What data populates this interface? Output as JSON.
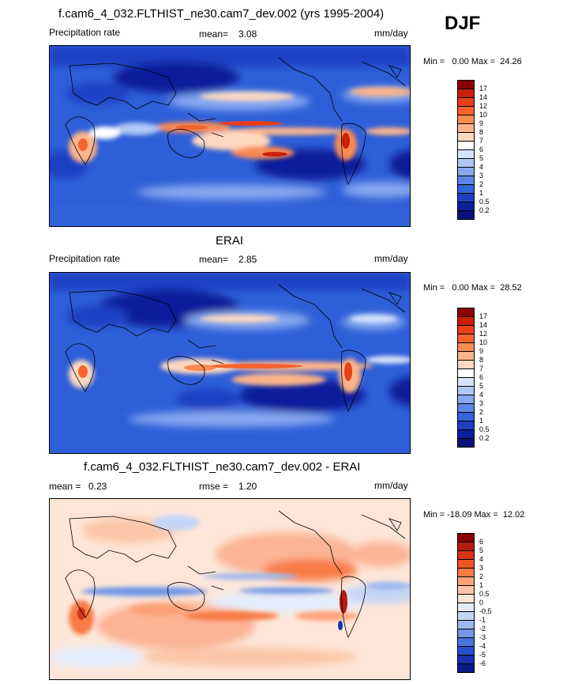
{
  "season": "DJF",
  "panels": [
    {
      "title": "f.cam6_4_032.FLTHIST_ne30.cam7_dev.002 (yrs 1995-2004)",
      "left_label": "Precipitation rate",
      "stat_label": "mean=",
      "stat_value": "3.08",
      "units": "mm/day",
      "minmax": "Min =   0.00 Max =  24.26",
      "colorbar": {
        "levels": [
          "17",
          "14",
          "12",
          "10",
          "9",
          "8",
          "7",
          "6",
          "5",
          "4",
          "3",
          "2",
          "1",
          "0.5",
          "0.2"
        ],
        "colors": [
          "#8b0000",
          "#c8200a",
          "#e8401a",
          "#f5632e",
          "#fa8a52",
          "#fdb48a",
          "#fdd8c0",
          "#ffffff",
          "#d6e4fb",
          "#aec8f6",
          "#86a8ef",
          "#5d87e6",
          "#3464da",
          "#1d3fc4",
          "#0b1f9a",
          "#0a1278"
        ]
      }
    },
    {
      "title": "ERAI",
      "left_label": "Precipitation rate",
      "stat_label": "mean=",
      "stat_value": "2.85",
      "units": "mm/day",
      "minmax": "Min =   0.00 Max =  28.52",
      "colorbar": {
        "levels": [
          "17",
          "14",
          "12",
          "10",
          "9",
          "8",
          "7",
          "6",
          "5",
          "4",
          "3",
          "2",
          "1",
          "0.5",
          "0.2"
        ],
        "colors": [
          "#8b0000",
          "#c8200a",
          "#e8401a",
          "#f5632e",
          "#fa8a52",
          "#fdb48a",
          "#fdd8c0",
          "#ffffff",
          "#d6e4fb",
          "#aec8f6",
          "#86a8ef",
          "#5d87e6",
          "#3464da",
          "#1d3fc4",
          "#0b1f9a",
          "#0a1278"
        ]
      }
    },
    {
      "title": "f.cam6_4_032.FLTHIST_ne30.cam7_dev.002 - ERAI",
      "left_label": "mean =",
      "left_value": "0.23",
      "stat_label": "rmse =",
      "stat_value": "1.20",
      "units": "mm/day",
      "minmax": "Min = -18.09 Max =  12.02",
      "colorbar": {
        "levels": [
          "6",
          "5",
          "4",
          "3",
          "2",
          "1",
          "0.5",
          "0",
          "-0.5",
          "-1",
          "-2",
          "-3",
          "-4",
          "-5",
          "-6"
        ],
        "colors": [
          "#8b0000",
          "#b71c0c",
          "#d83515",
          "#ee5525",
          "#f87a45",
          "#fca27a",
          "#fdc6a8",
          "#fde6d8",
          "#e4ecfb",
          "#c4d6f6",
          "#9cb8f0",
          "#7197e6",
          "#4a74db",
          "#2850cc",
          "#1530b0",
          "#0a1a8a"
        ]
      }
    }
  ]
}
